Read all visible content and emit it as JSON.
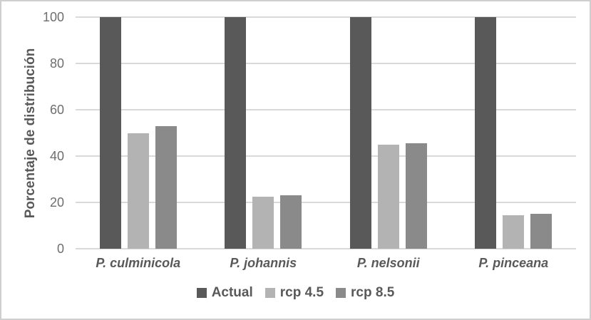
{
  "chart_data": {
    "type": "bar",
    "title": "",
    "xlabel": "",
    "ylabel": "Porcentaje de distribución",
    "ylim": [
      0,
      100
    ],
    "yticks": [
      0,
      20,
      40,
      60,
      80,
      100
    ],
    "grid": true,
    "legend_position": "bottom",
    "categories": [
      "P. culminicola",
      "P. johannis",
      "P. nelsonii",
      "P. pinceana"
    ],
    "series": [
      {
        "name": "Actual",
        "color": "#595959",
        "values": [
          100,
          100,
          100,
          100
        ]
      },
      {
        "name": "rcp 4.5",
        "color": "#b3b3b3",
        "values": [
          50,
          22.5,
          45,
          14.5
        ]
      },
      {
        "name": "rcp 8.5",
        "color": "#8a8a8a",
        "values": [
          53,
          23,
          45.5,
          15
        ]
      }
    ]
  },
  "colors": {
    "gridline": "#d9d9d9",
    "axis_line": "#d9d9d9",
    "tick_text": "#6e6e6e",
    "label_text": "#595959",
    "frame_border": "#cfcfcf"
  }
}
